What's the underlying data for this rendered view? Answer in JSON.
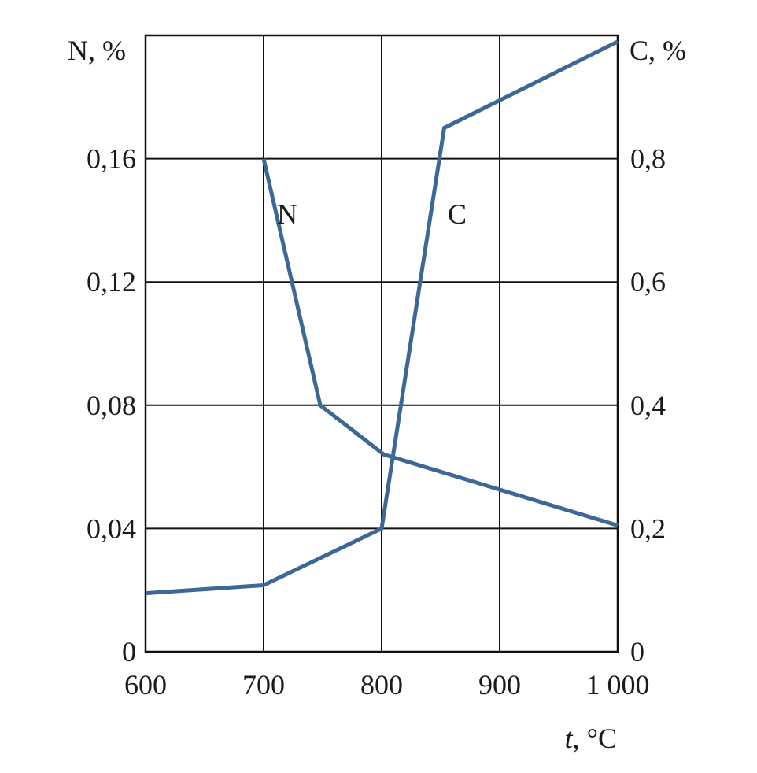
{
  "chart_data": {
    "type": "line",
    "xlabel_var": "t",
    "xlabel_unit": ", °C",
    "ylabel_left": "N, %",
    "ylabel_right": "C, %",
    "xlim": [
      600,
      1000
    ],
    "ylim_left": [
      0,
      0.2
    ],
    "ylim_right": [
      0,
      1.0
    ],
    "x_ticks": [
      600,
      700,
      800,
      900,
      1000
    ],
    "x_tick_labels": [
      "600",
      "700",
      "800",
      "900",
      "1 000"
    ],
    "y_left_ticks": [
      0,
      0.04,
      0.08,
      0.12,
      0.16
    ],
    "y_left_tick_labels": [
      "0",
      "0,04",
      "0,08",
      "0,12",
      "0,16"
    ],
    "y_right_ticks": [
      0,
      0.2,
      0.4,
      0.6,
      0.8
    ],
    "y_right_tick_labels": [
      "0",
      "0,2",
      "0,4",
      "0,6",
      "0,8"
    ],
    "grid": true,
    "line_color": "#3d6896",
    "series": [
      {
        "name": "N",
        "axis": "left",
        "x": [
          700,
          748,
          802,
          1000
        ],
        "y": [
          0.16,
          0.08,
          0.064,
          0.041
        ]
      },
      {
        "name": "C",
        "axis": "right",
        "x": [
          600,
          700,
          800,
          853,
          1000
        ],
        "y": [
          0.095,
          0.108,
          0.2,
          0.85,
          0.99
        ]
      }
    ],
    "annotations": [
      {
        "text": "N",
        "x": 720,
        "y_left": 0.142
      },
      {
        "text": "C",
        "x": 864,
        "y_left": 0.142
      }
    ]
  }
}
